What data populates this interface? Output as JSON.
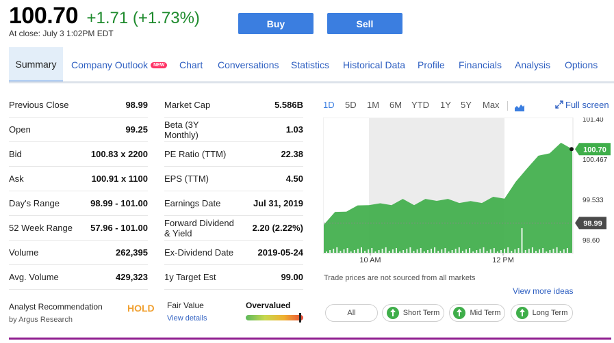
{
  "quote": {
    "price": "100.70",
    "change": "+1.71 (+1.73%)",
    "close_note": "At close: July 3 1:02PM EDT"
  },
  "actions": {
    "buy": "Buy",
    "sell": "Sell"
  },
  "tabs": [
    {
      "label": "Summary",
      "active": true
    },
    {
      "label": "Company Outlook",
      "badge": "NEW"
    },
    {
      "label": "Chart"
    },
    {
      "label": "Conversations"
    },
    {
      "label": "Statistics"
    },
    {
      "label": "Historical Data"
    },
    {
      "label": "Profile"
    },
    {
      "label": "Financials"
    },
    {
      "label": "Analysis"
    },
    {
      "label": "Options"
    }
  ],
  "stats_left": [
    {
      "label": "Previous Close",
      "value": "98.99"
    },
    {
      "label": "Open",
      "value": "99.25"
    },
    {
      "label": "Bid",
      "value": "100.83 x 2200"
    },
    {
      "label": "Ask",
      "value": "100.91 x 1100"
    },
    {
      "label": "Day's Range",
      "value": "98.99 - 101.00"
    },
    {
      "label": "52 Week Range",
      "value": "57.96 - 101.00"
    },
    {
      "label": "Volume",
      "value": "262,395"
    },
    {
      "label": "Avg. Volume",
      "value": "429,323"
    }
  ],
  "stats_right": [
    {
      "label": "Market Cap",
      "value": "5.586B"
    },
    {
      "label": "Beta (3Y Monthly)",
      "value": "1.03"
    },
    {
      "label": "PE Ratio (TTM)",
      "value": "22.38"
    },
    {
      "label": "EPS (TTM)",
      "value": "4.50"
    },
    {
      "label": "Earnings Date",
      "value": "Jul 31, 2019"
    },
    {
      "label": "Forward Dividend & Yield",
      "value": "2.20 (2.22%)"
    },
    {
      "label": "Ex-Dividend Date",
      "value": "2019-05-24"
    },
    {
      "label": "1y Target Est",
      "value": "99.00"
    }
  ],
  "analyst": {
    "label": "Analyst Recommendation",
    "source": "by Argus Research",
    "rating": "HOLD",
    "fair_value_label": "Fair Value",
    "fair_value_link": "View details",
    "valuation": "Overvalued",
    "valuation_level": 0.93
  },
  "chart_controls": {
    "ranges": [
      "1D",
      "5D",
      "1M",
      "6M",
      "YTD",
      "1Y",
      "5Y",
      "Max"
    ],
    "active_range": "1D",
    "fullscreen_label": "Full screen",
    "icons": [
      "chart-type-icon",
      "expand-icon"
    ]
  },
  "chart_data": {
    "type": "area",
    "color": "#3fae4a",
    "x_ticks": [
      "10 AM",
      "12 PM"
    ],
    "y_ticks": [
      "101.40",
      "100.467",
      "99.533",
      "98.60"
    ],
    "ylim": [
      98.3,
      101.4
    ],
    "current_price_label": "100.70",
    "previous_close_label": "98.99",
    "current_price": 100.7,
    "previous_close": 98.99,
    "highlight_session": [
      "10 AM",
      "12 PM"
    ],
    "x": [
      "09:30",
      "09:40",
      "09:50",
      "10:00",
      "10:10",
      "10:20",
      "10:30",
      "10:40",
      "10:50",
      "11:00",
      "11:10",
      "11:20",
      "11:30",
      "11:40",
      "11:50",
      "12:00",
      "12:10",
      "12:20",
      "12:30",
      "12:40",
      "12:50",
      "13:00",
      "13:02"
    ],
    "values": [
      98.95,
      99.2,
      99.3,
      99.35,
      99.45,
      99.4,
      99.45,
      99.5,
      99.45,
      99.5,
      99.55,
      99.5,
      99.5,
      99.45,
      99.5,
      99.55,
      99.6,
      99.9,
      100.3,
      100.5,
      100.65,
      100.8,
      100.7
    ]
  },
  "chart_note": "Trade prices are not sourced from all markets",
  "ideas": {
    "link": "View more ideas",
    "filters": [
      "All",
      "Short Term",
      "Mid Term",
      "Long Term"
    ]
  },
  "theme": {
    "accent": "#3b7ee0",
    "positive": "#1d8a2c",
    "chart_green": "#3fae4a",
    "hold": "#f0a030"
  }
}
